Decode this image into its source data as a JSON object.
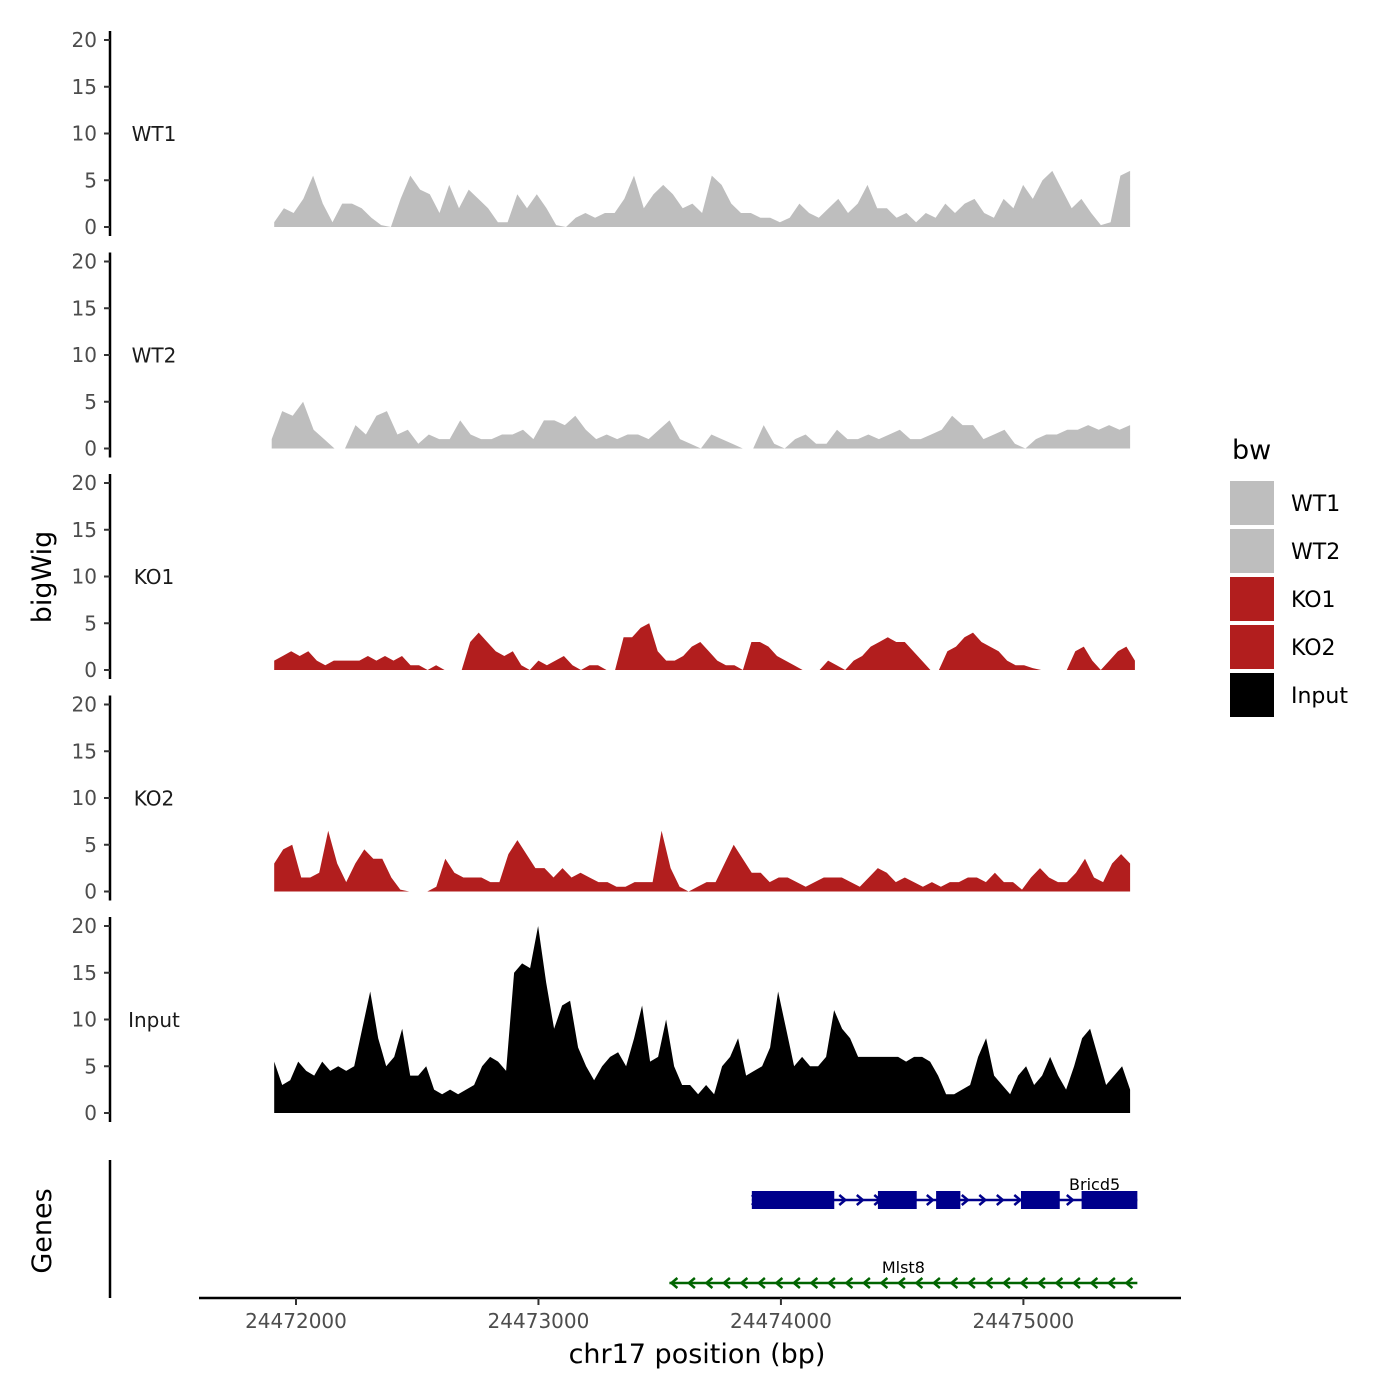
{
  "chart_data": {
    "type": "area",
    "chromosome": "chr17",
    "xlabel": "chr17 position (bp)",
    "ylabel": "bigWig",
    "genes_label": "Genes",
    "xlim": [
      24471600,
      24475650
    ],
    "x_ticks": [
      24472000,
      24473000,
      24474000,
      24475000
    ],
    "x_tick_labels": [
      "24472000",
      "24473000",
      "24474000",
      "24475000"
    ],
    "ylim": [
      0,
      20
    ],
    "y_ticks": [
      0,
      5,
      10,
      15,
      20
    ],
    "y_tick_labels": [
      "0",
      "5",
      "10",
      "15",
      "20"
    ],
    "legend": {
      "title": "bw",
      "entries": [
        {
          "label": "WT1",
          "color": "#bebebe"
        },
        {
          "label": "WT2",
          "color": "#bebebe"
        },
        {
          "label": "KO1",
          "color": "#b21e1e"
        },
        {
          "label": "KO2",
          "color": "#b21e1e"
        },
        {
          "label": "Input",
          "color": "#000000"
        }
      ]
    },
    "series": [
      {
        "name": "WT1",
        "color": "#bebebe",
        "x_start": 24471910,
        "x_end": 24475440,
        "values": [
          0.5,
          2,
          1.5,
          3,
          5.5,
          2.5,
          0.5,
          2.5,
          2.5,
          2,
          1,
          0.2,
          0,
          3,
          5.5,
          4,
          3.5,
          1.5,
          4.5,
          2,
          4,
          3,
          2,
          0.5,
          0.5,
          3.5,
          2,
          3.5,
          2,
          0.2,
          0,
          1,
          1.5,
          1,
          1.5,
          1.5,
          3,
          5.5,
          2,
          3.5,
          4.5,
          3.5,
          2,
          2.5,
          1.5,
          5.5,
          4.5,
          2.5,
          1.5,
          1.5,
          1,
          1,
          0.5,
          1,
          2.5,
          1.5,
          1,
          2,
          3,
          1.5,
          2.5,
          4.5,
          2,
          2,
          1,
          1.5,
          0.5,
          1.5,
          1,
          2.5,
          1.5,
          2.5,
          3,
          1.5,
          1,
          3,
          2,
          4.5,
          3,
          5,
          6,
          4,
          2,
          3,
          1.5,
          0.2,
          0.5,
          5.5,
          6
        ]
      },
      {
        "name": "WT2",
        "color": "#bebebe",
        "x_start": 24471900,
        "x_end": 24475440,
        "values": [
          1,
          4,
          3.5,
          5,
          2,
          1,
          0,
          0,
          2.5,
          1.5,
          3.5,
          4,
          1.5,
          2,
          0.5,
          1.5,
          1,
          1,
          3,
          1.5,
          1,
          1,
          1.5,
          1.5,
          2,
          1,
          3,
          3,
          2.5,
          3.5,
          2,
          1,
          1.5,
          1,
          1.5,
          1.5,
          1,
          2,
          3,
          1,
          0.5,
          0,
          1.5,
          1,
          0.5,
          0,
          0,
          2.5,
          0.5,
          0,
          1,
          1.5,
          0.5,
          0.5,
          2,
          1,
          1,
          1.5,
          1,
          1.5,
          2,
          1,
          1,
          1.5,
          2,
          3.5,
          2.5,
          2.5,
          1,
          1.5,
          2,
          0.5,
          0,
          1,
          1.5,
          1.5,
          2,
          2,
          2.5,
          2,
          2.5,
          2,
          2.5
        ]
      },
      {
        "name": "KO1",
        "color": "#b21e1e",
        "x_start": 24471910,
        "x_end": 24475460,
        "values": [
          1,
          1.5,
          2,
          1.5,
          2,
          1,
          0.5,
          1,
          1,
          1,
          1,
          1.5,
          1,
          1.5,
          1,
          1.5,
          0.5,
          0.5,
          0,
          0.5,
          0,
          0,
          0,
          3,
          4,
          3,
          2,
          1.5,
          2,
          0.5,
          0,
          1,
          0.5,
          1,
          1.5,
          0.5,
          0,
          0.5,
          0.5,
          0,
          0,
          3.5,
          3.5,
          4.5,
          5,
          2,
          1,
          1,
          1.5,
          2.5,
          3,
          2,
          1,
          0.5,
          0.5,
          0,
          3,
          3,
          2.5,
          1.5,
          1,
          0.5,
          0,
          0,
          0,
          1,
          0.5,
          0,
          1,
          1.5,
          2.5,
          3,
          3.5,
          3,
          3,
          2,
          1,
          0,
          0,
          2,
          2.5,
          3.5,
          4,
          3,
          2.5,
          2,
          1,
          0.5,
          0.5,
          0.2,
          0,
          0,
          0,
          0,
          2,
          2.5,
          1,
          0,
          1,
          2,
          2.5,
          1
        ]
      },
      {
        "name": "KO2",
        "color": "#b21e1e",
        "x_start": 24471910,
        "x_end": 24475440,
        "values": [
          3,
          4.5,
          5,
          1.5,
          1.5,
          2,
          6.5,
          3,
          1,
          3,
          4.5,
          3.5,
          3.5,
          1.5,
          0.2,
          0,
          0,
          0,
          0.5,
          3.5,
          2,
          1.5,
          1.5,
          1.5,
          1,
          1,
          4,
          5.5,
          4,
          2.5,
          2.5,
          1.5,
          2.5,
          1.5,
          2,
          1.5,
          1,
          1,
          0.5,
          0.5,
          1,
          1,
          1,
          6.5,
          2.5,
          0.5,
          0,
          0.5,
          1,
          1,
          3,
          5,
          3.5,
          2,
          2,
          1,
          1.5,
          1.5,
          1,
          0.5,
          1,
          1.5,
          1.5,
          1.5,
          1,
          0.5,
          1.5,
          2.5,
          2,
          1,
          1.5,
          1,
          0.5,
          1,
          0.5,
          1,
          1,
          1.5,
          1.5,
          1,
          2,
          1,
          1,
          0.2,
          1.5,
          2.5,
          1.5,
          1,
          1,
          2,
          3.5,
          1.5,
          1,
          3,
          4,
          3
        ]
      },
      {
        "name": "Input",
        "color": "#000000",
        "x_start": 24471910,
        "x_end": 24475440,
        "values": [
          5.5,
          3,
          3.5,
          5.5,
          4.5,
          4,
          5.5,
          4.5,
          5,
          4.5,
          5,
          9,
          13,
          8,
          5,
          6,
          9,
          4,
          4,
          5,
          2.5,
          2,
          2.5,
          2,
          2.5,
          3,
          5,
          6,
          5.5,
          4.5,
          15,
          16,
          15.5,
          20,
          14,
          9,
          11.5,
          12,
          7,
          5,
          3.5,
          5,
          6,
          6.5,
          5,
          8,
          11.5,
          5.5,
          6,
          10,
          5,
          3,
          3,
          2,
          3,
          2,
          5,
          6,
          8,
          4,
          4.5,
          5,
          7,
          13,
          9,
          5,
          6,
          5,
          5,
          6,
          11,
          9,
          8,
          6,
          6,
          6,
          6,
          6,
          6,
          5.5,
          6,
          6,
          5.5,
          4,
          2,
          2,
          2.5,
          3,
          6,
          8,
          4,
          3,
          2,
          4,
          5,
          3,
          4,
          6,
          4,
          2.5,
          5,
          8,
          9,
          6,
          3,
          4,
          5,
          2.5
        ]
      }
    ],
    "track_labels": [
      "WT1",
      "WT2",
      "KO1",
      "KO2",
      "Input"
    ],
    "genes": [
      {
        "name": "Bricd5",
        "color": "#00008b",
        "strand": "+",
        "start": 24473880,
        "end": 24475470,
        "exons": [
          [
            24473880,
            24474220
          ],
          [
            24474400,
            24474560
          ],
          [
            24474640,
            24474740
          ],
          [
            24474990,
            24475150
          ],
          [
            24475240,
            24475470
          ]
        ]
      },
      {
        "name": "Mlst8",
        "color": "#006400",
        "strand": "-",
        "start": 24473540,
        "end": 24475470,
        "exons": []
      }
    ]
  }
}
